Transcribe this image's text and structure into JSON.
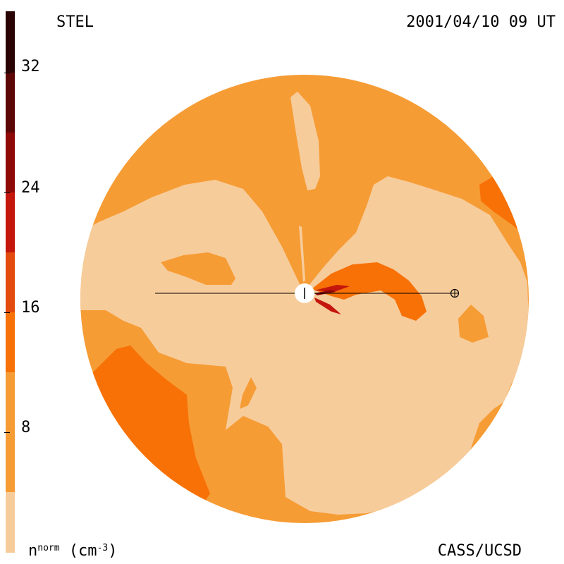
{
  "header": {
    "observatory": "STEL",
    "timestamp": "2001/04/10 09 UT"
  },
  "footer": {
    "credit": "CASS/UCSD",
    "unit_base": "n",
    "unit_sup": "norm",
    "unit_rest": " (cm",
    "unit_exp": "-3",
    "unit_close": ")"
  },
  "colorbar": {
    "ticks": [
      "8",
      "16",
      "24",
      "32"
    ],
    "colors": [
      "#f7cc9b",
      "#f69c35",
      "#f77107",
      "#e24b0d",
      "#c4160c",
      "#8e0a08",
      "#5c0606",
      "#2a0404"
    ]
  },
  "map": {
    "background_color": "#f69c35",
    "low_color": "#f7cc9b",
    "mid_color": "#f77107",
    "high_color": "#c4160c",
    "peak_color": "#8e0a08"
  }
}
